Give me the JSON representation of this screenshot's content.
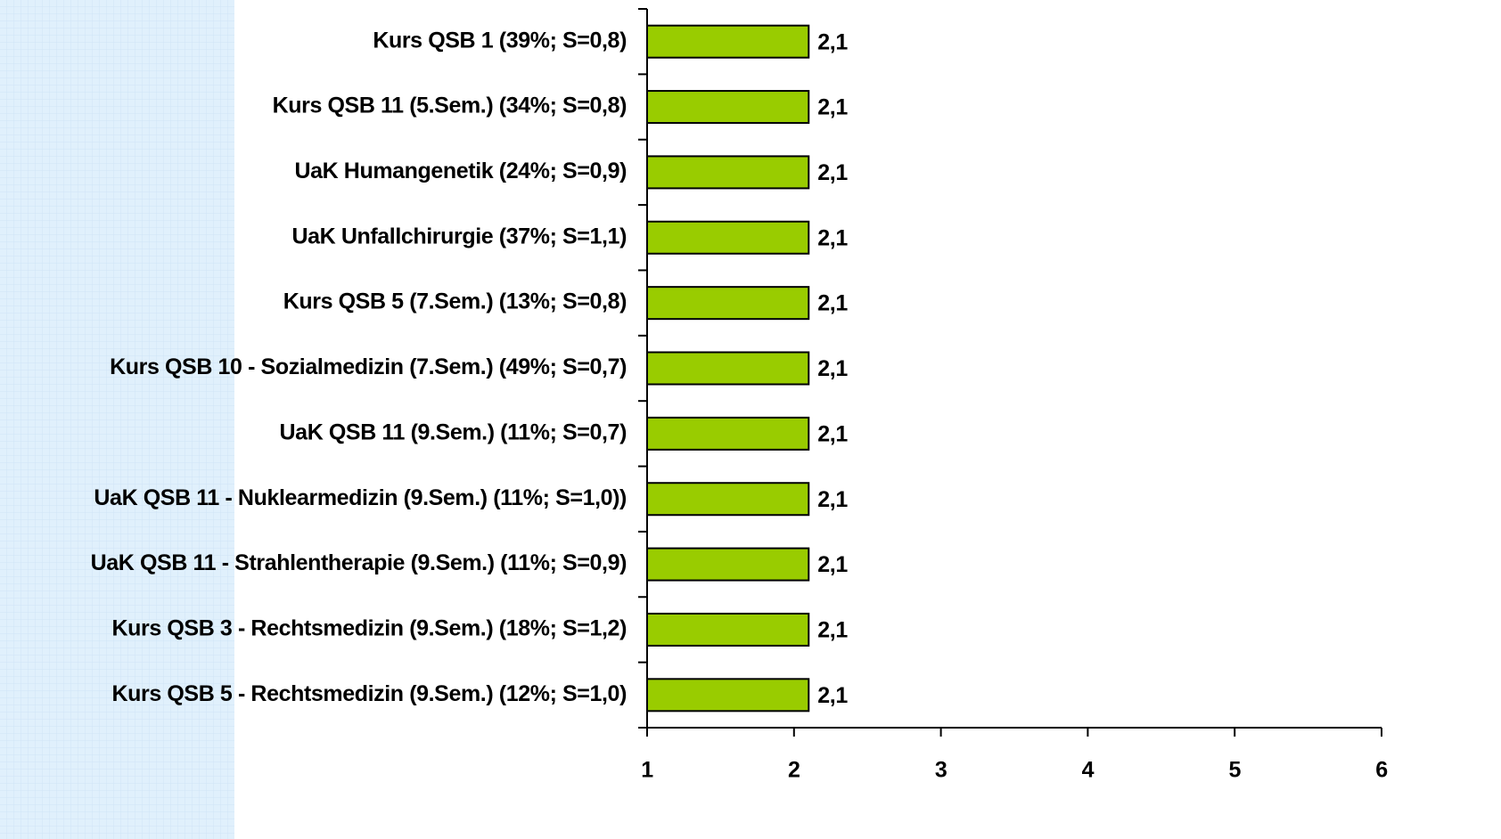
{
  "chart_data": {
    "type": "bar",
    "orientation": "horizontal",
    "categories": [
      "Kurs QSB 1 (39%; S=0,8)",
      "Kurs QSB 11 (5.Sem.) (34%; S=0,8)",
      "UaK Humangenetik (24%; S=0,9)",
      "UaK Unfallchirurgie (37%; S=1,1)",
      "Kurs QSB 5 (7.Sem.) (13%; S=0,8)",
      "Kurs QSB 10 - Sozialmedizin (7.Sem.) (49%; S=0,7)",
      "UaK QSB 11 (9.Sem.) (11%; S=0,7)",
      "UaK QSB 11 - Nuklearmedizin (9.Sem.) (11%; S=1,0))",
      "UaK QSB 11 - Strahlentherapie (9.Sem.) (11%; S=0,9)",
      "Kurs QSB 3 - Rechtsmedizin (9.Sem.) (18%; S=1,2)",
      "Kurs QSB 5 - Rechtsmedizin (9.Sem.) (12%; S=1,0)"
    ],
    "values": [
      2.1,
      2.1,
      2.1,
      2.1,
      2.1,
      2.1,
      2.1,
      2.1,
      2.1,
      2.1,
      2.1
    ],
    "value_labels": [
      "2,1",
      "2,1",
      "2,1",
      "2,1",
      "2,1",
      "2,1",
      "2,1",
      "2,1",
      "2,1",
      "2,1",
      "2,1"
    ],
    "color": "#99cc00",
    "xlim": [
      1,
      6
    ],
    "xticks": [
      1,
      2,
      3,
      4,
      5,
      6
    ]
  }
}
